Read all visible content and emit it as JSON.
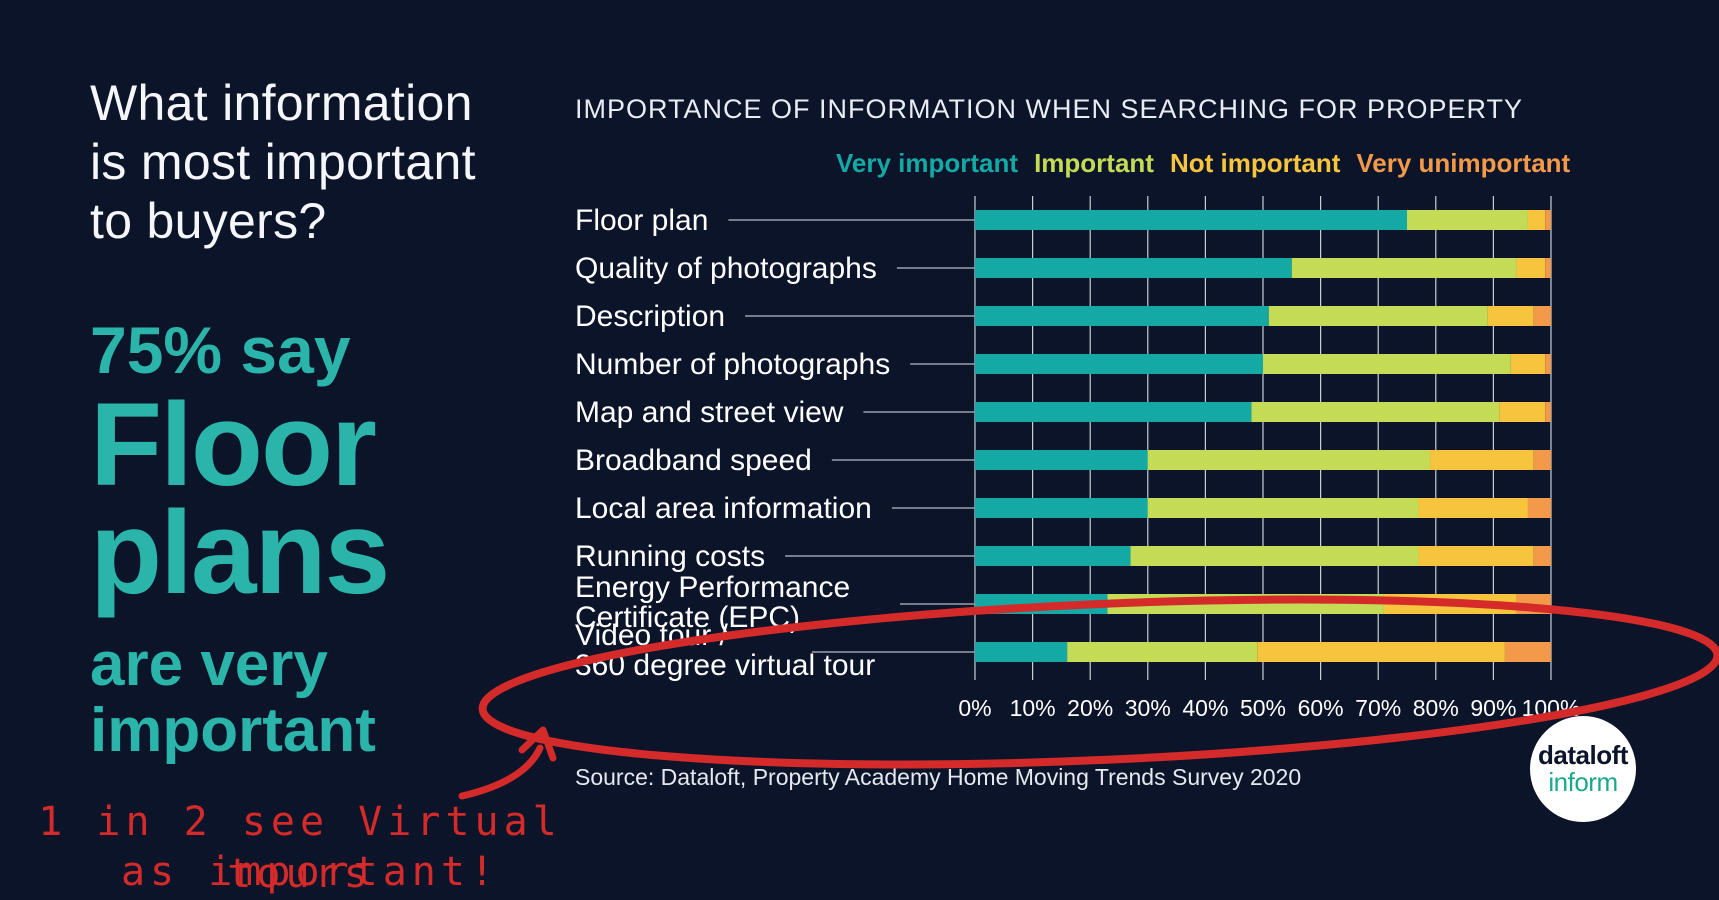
{
  "headline": {
    "question": "What information\nis most important\nto buyers?",
    "stat": "75% say",
    "big_line1": "Floor",
    "big_line2": "plans",
    "sub_line1": "are very",
    "sub_line2": "important"
  },
  "annotation": {
    "line1": "1 in 2 see Virtual tours",
    "line2": "as important!",
    "color": "#d42a2a"
  },
  "source": "Source: Dataloft, Property Academy Home Moving Trends Survey 2020",
  "logo": {
    "line1": "dataloft",
    "line2": "inform"
  },
  "chart_data": {
    "type": "bar",
    "orientation": "horizontal",
    "stacked": true,
    "title": "IMPORTANCE OF INFORMATION WHEN SEARCHING FOR PROPERTY",
    "categories": [
      "Floor plan",
      "Quality of photographs",
      "Description",
      "Number of photographs",
      "Map and street view",
      "Broadband speed",
      "Local area information",
      "Running costs",
      "Energy Performance\nCertificate (EPC)",
      "Video tour /\n360 degree virtual tour"
    ],
    "series": [
      {
        "name": "Very important",
        "color": "#14a9a4",
        "values": [
          75,
          55,
          51,
          50,
          48,
          30,
          30,
          27,
          23,
          16
        ]
      },
      {
        "name": "Important",
        "color": "#c4db55",
        "values": [
          21,
          39,
          38,
          43,
          43,
          49,
          47,
          50,
          48,
          33
        ]
      },
      {
        "name": "Not important",
        "color": "#f7c53d",
        "values": [
          3,
          5,
          8,
          6,
          8,
          18,
          19,
          20,
          23,
          43
        ]
      },
      {
        "name": "Very unimportant",
        "color": "#f29a4a",
        "values": [
          1,
          1,
          3,
          1,
          1,
          3,
          4,
          3,
          6,
          8
        ]
      }
    ],
    "xlim": [
      0,
      100
    ],
    "xticks": [
      "0%",
      "10%",
      "20%",
      "30%",
      "40%",
      "50%",
      "60%",
      "70%",
      "80%",
      "90%",
      "100%"
    ],
    "grid": true,
    "legend_position": "top"
  }
}
